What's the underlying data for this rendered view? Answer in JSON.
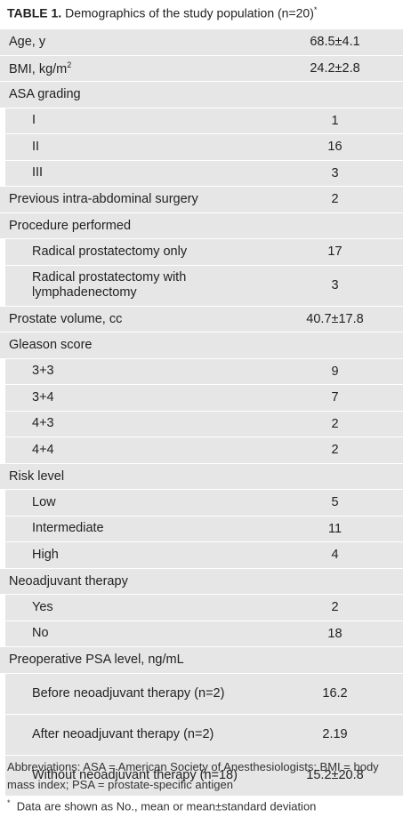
{
  "header": {
    "label": "TABLE 1.",
    "title": "Demographics of the study population (n=20)",
    "mark": "*"
  },
  "table": {
    "rows": [
      {
        "label": "Age, y",
        "value": "68.5±4.1"
      },
      {
        "label": "BMI, kg/m",
        "label_sup": "2",
        "value": "24.2±2.8"
      },
      {
        "label": "ASA grading",
        "items": [
          {
            "label": "I",
            "value": "1"
          },
          {
            "label": "II",
            "value": "16"
          },
          {
            "label": "III",
            "value": "3"
          }
        ]
      },
      {
        "label": "Previous intra-abdominal surgery",
        "value": "2"
      },
      {
        "label": "Procedure performed",
        "items": [
          {
            "label": "Radical prostatectomy only",
            "value": "17"
          },
          {
            "label": "Radical prostatectomy with lymphadenectomy",
            "value": "3"
          }
        ]
      },
      {
        "label": "Prostate volume, cc",
        "value": "40.7±17.8"
      },
      {
        "label": "Gleason score",
        "items": [
          {
            "label": "3+3",
            "value": "9"
          },
          {
            "label": "3+4",
            "value": "7"
          },
          {
            "label": "4+3",
            "value": "2"
          },
          {
            "label": "4+4",
            "value": "2"
          }
        ]
      },
      {
        "label": "Risk level",
        "items": [
          {
            "label": "Low",
            "value": "5"
          },
          {
            "label": "Intermediate",
            "value": "11"
          },
          {
            "label": "High",
            "value": "4"
          }
        ]
      },
      {
        "label": "Neoadjuvant therapy",
        "items": [
          {
            "label": "Yes",
            "value": "2"
          },
          {
            "label": "No",
            "value": "18"
          }
        ]
      },
      {
        "label": "Preoperative PSA level, ng/mL",
        "items": [
          {
            "label": "Before neoadjuvant therapy (n=2)",
            "value": "16.2"
          },
          {
            "label": "After neoadjuvant therapy (n=2)",
            "value": "2.19"
          },
          {
            "label": "Without neoadjuvant therapy (n=18)",
            "value": "15.2±20.8"
          }
        ]
      }
    ]
  },
  "footnotes": {
    "abbreviations": "Abbreviations: ASA = American Society of Anesthesiologists; BMI = body mass index; PSA = prostate-specific antigen",
    "mark": "*",
    "note": "Data are shown as No., mean or mean±standard deviation"
  }
}
